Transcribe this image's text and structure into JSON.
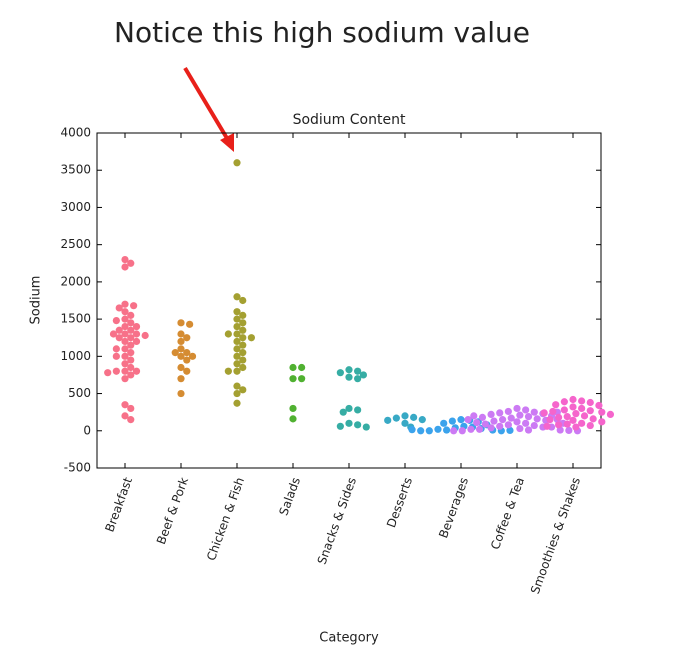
{
  "annotation": "Notice this high sodium value",
  "chart_data": {
    "type": "swarm",
    "title": "Sodium Content",
    "xlabel": "Category",
    "ylabel": "Sodium",
    "categories": [
      "Breakfast",
      "Beef & Pork",
      "Chicken & Fish",
      "Salads",
      "Snacks & Sides",
      "Desserts",
      "Beverages",
      "Coffee & Tea",
      "Smoothies & Shakes"
    ],
    "colors": [
      "#f77189",
      "#d58c32",
      "#a4a031",
      "#50b131",
      "#36ada4",
      "#38a9c5",
      "#3ba3ec",
      "#cc7af4",
      "#f565cc"
    ],
    "values": [
      [
        2300,
        2250,
        2200,
        1700,
        1680,
        1650,
        1600,
        1550,
        1500,
        1480,
        1450,
        1400,
        1400,
        1350,
        1350,
        1300,
        1300,
        1300,
        1280,
        1250,
        1250,
        1200,
        1200,
        1150,
        1100,
        1100,
        1050,
        1000,
        1000,
        950,
        900,
        850,
        800,
        800,
        800,
        780,
        750,
        700,
        350,
        300,
        200,
        150
      ],
      [
        1450,
        1430,
        1300,
        1250,
        1200,
        1100,
        1050,
        1050,
        1000,
        1000,
        950,
        850,
        800,
        700,
        500
      ],
      [
        3600,
        1800,
        1750,
        1600,
        1550,
        1500,
        1450,
        1400,
        1350,
        1300,
        1300,
        1250,
        1250,
        1200,
        1150,
        1100,
        1050,
        1000,
        950,
        900,
        850,
        800,
        800,
        600,
        550,
        500,
        370
      ],
      [
        850,
        850,
        700,
        700,
        300,
        160
      ],
      [
        820,
        800,
        780,
        750,
        720,
        700,
        300,
        280,
        250,
        100,
        80,
        60,
        50
      ],
      [
        200,
        180,
        170,
        150,
        140,
        100,
        50
      ],
      [
        150,
        140,
        130,
        120,
        100,
        80,
        60,
        50,
        40,
        30,
        20,
        10,
        10,
        0,
        0,
        0,
        5,
        15
      ],
      [
        300,
        280,
        260,
        250,
        240,
        230,
        220,
        210,
        200,
        190,
        180,
        170,
        160,
        150,
        150,
        140,
        130,
        120,
        110,
        100,
        100,
        90,
        80,
        70,
        60,
        50,
        50,
        40,
        30,
        20,
        20,
        10,
        10,
        5,
        0,
        0,
        0,
        250,
        200,
        150
      ],
      [
        420,
        400,
        390,
        380,
        350,
        340,
        320,
        300,
        280,
        270,
        260,
        250,
        240,
        230,
        220,
        200,
        190,
        180,
        160,
        150,
        140,
        120,
        100,
        90,
        80,
        70,
        60,
        50
      ]
    ],
    "ylim": [
      -500,
      4000
    ],
    "yticks": [
      -500,
      0,
      500,
      1000,
      1500,
      2000,
      2500,
      3000,
      3500,
      4000
    ]
  }
}
